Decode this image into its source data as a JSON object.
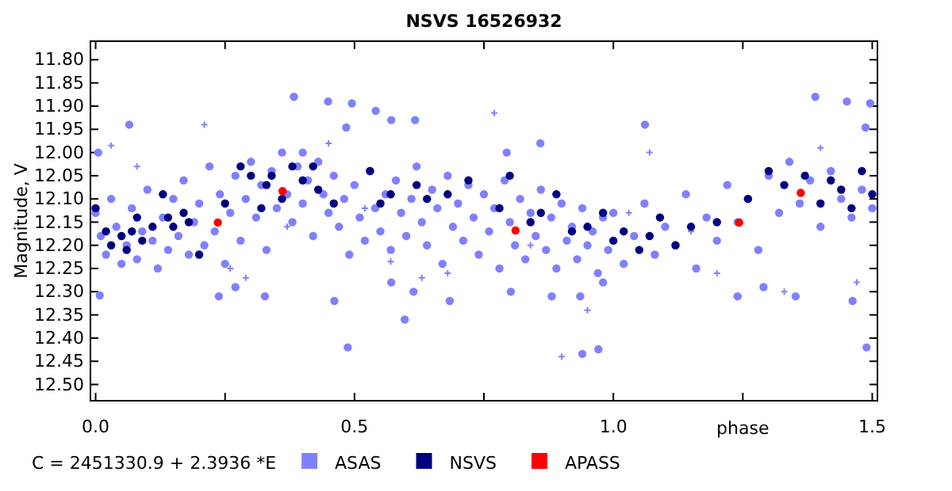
{
  "chart_data": {
    "type": "scatter",
    "title": "NSVS 16526932",
    "xlabel": "phase",
    "ylabel": "Magnitude, V",
    "annotations": [
      "C = 2451330.9 + 2.3936 *E"
    ],
    "xlim": [
      -0.01,
      1.51
    ],
    "ylim": [
      12.535,
      11.76
    ],
    "xticks": [
      {
        "value": 0,
        "label": "0.0"
      },
      {
        "value": 0.25,
        "label": null
      },
      {
        "value": 0.5,
        "label": "0.5"
      },
      {
        "value": 0.75,
        "label": null
      },
      {
        "value": 1,
        "label": "1.0"
      },
      {
        "value": 1.25,
        "label": null
      },
      {
        "value": 1.5,
        "label": "1.5"
      }
    ],
    "yticks": [
      {
        "value": 11.8,
        "label": "11.80"
      },
      {
        "value": 11.85,
        "label": "11.85"
      },
      {
        "value": 11.9,
        "label": "11.90"
      },
      {
        "value": 11.95,
        "label": "11.95"
      },
      {
        "value": 12,
        "label": "12.00"
      },
      {
        "value": 12.05,
        "label": "12.05"
      },
      {
        "value": 12.1,
        "label": "12.10"
      },
      {
        "value": 12.15,
        "label": "12.15"
      },
      {
        "value": 12.2,
        "label": "12.20"
      },
      {
        "value": 12.25,
        "label": "12.25"
      },
      {
        "value": 12.3,
        "label": "12.30"
      },
      {
        "value": 12.35,
        "label": "12.35"
      },
      {
        "value": 12.4,
        "label": "12.40"
      },
      {
        "value": 12.45,
        "label": "12.45"
      },
      {
        "value": 12.5,
        "label": "12.50"
      }
    ],
    "grid": false,
    "legend": "bottom",
    "marker": "circle",
    "series": [
      {
        "type": "scatter",
        "marker": "cross",
        "color": "#8080ff",
        "x": [
          0.03,
          0.08,
          0.21,
          0.26,
          0.29,
          0.45,
          0.52,
          0.63,
          0.68,
          0.77,
          0.84,
          0.9,
          0.95,
          1.07,
          1.15,
          1.2,
          1.33,
          1.4,
          1.47,
          0.37,
          0.57,
          1.03
        ],
        "values": [
          11.985,
          12.03,
          11.94,
          12.25,
          12.27,
          11.98,
          12.12,
          12.27,
          12.26,
          11.915,
          12.2,
          12.44,
          12.34,
          12,
          12.17,
          12.26,
          12.3,
          11.99,
          12.28,
          12.16,
          12.235,
          12.13
        ]
      },
      {
        "type": "scatter",
        "name": "ASAS",
        "color": "#8080ff",
        "x": [
          0,
          0.01,
          0.02,
          0.03,
          0.04,
          0.05,
          0.06,
          0.07,
          0.08,
          0.09,
          0.1,
          0.11,
          0.12,
          0.13,
          0.14,
          0.15,
          0.16,
          0.17,
          0.18,
          0.19,
          0.2,
          0.21,
          0.22,
          0.23,
          0.24,
          0.25,
          0.26,
          0.27,
          0.28,
          0.29,
          0.3,
          0.31,
          0.32,
          0.33,
          0.34,
          0.35,
          0.36,
          0.37,
          0.38,
          0.39,
          0.4,
          0.41,
          0.42,
          0.43,
          0.44,
          0.45,
          0.46,
          0.47,
          0.48,
          0.49,
          0.5,
          0.51,
          0.52,
          0.53,
          0.54,
          0.55,
          0.56,
          0.57,
          0.58,
          0.59,
          0.6,
          0.61,
          0.62,
          0.63,
          0.64,
          0.65,
          0.66,
          0.67,
          0.68,
          0.69,
          0.7,
          0.71,
          0.72,
          0.73,
          0.74,
          0.75,
          0.76,
          0.77,
          0.78,
          0.79,
          0.8,
          0.81,
          0.82,
          0.83,
          0.84,
          0.85,
          0.86,
          0.87,
          0.88,
          0.89,
          0.9,
          0.91,
          0.92,
          0.93,
          0.94,
          0.95,
          0.96,
          0.97,
          0.98,
          0.99,
          1,
          1.02,
          1.04,
          1.06,
          1.08,
          1.1,
          1.12,
          1.14,
          1.16,
          1.18,
          1.2,
          1.22,
          1.24,
          1.26,
          1.28,
          1.3,
          1.32,
          1.34,
          1.36,
          1.38,
          1.4,
          1.42,
          1.44,
          1.46,
          1.48,
          1.5,
          0.005,
          0.065,
          0.383,
          0.449,
          0.495,
          0.484,
          0.541,
          0.571,
          0.617,
          0.4,
          1.39,
          1.451,
          1.496,
          1.487,
          1.061,
          0.859,
          0.794,
          0.008,
          0.238,
          0.27,
          0.327,
          0.461,
          0.487,
          0.571,
          0.597,
          0.614,
          0.684,
          0.802,
          0.881,
          0.94,
          0.971,
          0.936,
          0.98,
          1.24,
          1.29,
          1.352,
          1.462,
          1.489
        ],
        "values": [
          12.13,
          12.18,
          12.22,
          12.1,
          12.16,
          12.24,
          12.2,
          12.12,
          12.23,
          12.17,
          12.08,
          12.19,
          12.25,
          12.14,
          12.21,
          12.1,
          12.18,
          12.06,
          12.22,
          12.15,
          12.11,
          12.2,
          12.03,
          12.17,
          12.09,
          12.24,
          12.13,
          12.05,
          12.19,
          12.1,
          12.02,
          12.14,
          12.07,
          12.21,
          12.04,
          12.12,
          12,
          12.09,
          12.15,
          12.03,
          12.11,
          12.06,
          12.18,
          12.02,
          12.09,
          12.13,
          12.05,
          12.16,
          12.1,
          12.22,
          12.07,
          12.14,
          12.19,
          12.04,
          12.12,
          12.17,
          12.09,
          12.21,
          12.06,
          12.13,
          12.18,
          12.1,
          12.03,
          12.15,
          12.2,
          12.08,
          12.12,
          12.24,
          12.05,
          12.16,
          12.11,
          12.19,
          12.07,
          12.14,
          12.22,
          12.09,
          12.17,
          12.12,
          12.25,
          12.06,
          12.15,
          12.2,
          12.1,
          12.23,
          12.13,
          12.18,
          12.08,
          12.21,
          12.14,
          12.25,
          12.11,
          12.19,
          12.16,
          12.23,
          12.12,
          12.2,
          12.17,
          12.26,
          12.14,
          12.21,
          12.13,
          12.24,
          12.18,
          12.11,
          12.22,
          12.16,
          12.2,
          12.09,
          12.25,
          12.14,
          12.19,
          12.07,
          12.15,
          12.1,
          12.21,
          12.05,
          12.13,
          12.02,
          12.11,
          12.06,
          12.16,
          12.04,
          12.1,
          12.14,
          12.08,
          12.12,
          12,
          11.94,
          11.88,
          11.89,
          11.894,
          11.946,
          11.91,
          11.93,
          11.93,
          12,
          11.88,
          11.89,
          11.894,
          11.946,
          11.94,
          11.98,
          12,
          12.308,
          12.31,
          12.29,
          12.31,
          12.32,
          12.42,
          12.28,
          12.36,
          12.3,
          12.32,
          12.3,
          12.31,
          12.434,
          12.424,
          12.31,
          12.28,
          12.31,
          12.29,
          12.31,
          12.32,
          12.42
        ]
      },
      {
        "type": "scatter",
        "name": "NSVS",
        "color": "#000080",
        "x": [
          0,
          0.02,
          0.03,
          0.05,
          0.06,
          0.07,
          0.08,
          0.09,
          0.11,
          0.13,
          0.14,
          0.15,
          0.17,
          0.18,
          0.2,
          0.25,
          0.28,
          0.3,
          0.32,
          0.33,
          0.34,
          0.36,
          0.38,
          0.4,
          0.42,
          0.43,
          0.46,
          0.53,
          0.55,
          0.57,
          0.62,
          0.64,
          0.68,
          0.72,
          0.78,
          0.8,
          0.84,
          0.86,
          0.89,
          0.92,
          0.95,
          0.98,
          1,
          1.02,
          1.05,
          1.07,
          1.09,
          1.12,
          1.15,
          1.2,
          1.26,
          1.3,
          1.33,
          1.37,
          1.4,
          1.42,
          1.44,
          1.46,
          1.48,
          1.5
        ],
        "values": [
          12.12,
          12.17,
          12.2,
          12.18,
          12.21,
          12.17,
          12.14,
          12.19,
          12.16,
          12.09,
          12.14,
          12.16,
          12.13,
          12.15,
          12.22,
          12.11,
          12.03,
          12.05,
          12.12,
          12.07,
          12.05,
          12.1,
          12.03,
          12.06,
          12.03,
          12.08,
          12.11,
          12.04,
          12.11,
          12.09,
          12.07,
          12.1,
          12.09,
          12.06,
          12.12,
          12.05,
          12.15,
          12.13,
          12.09,
          12.17,
          12.16,
          12.13,
          12.19,
          12.17,
          12.21,
          12.18,
          12.14,
          12.2,
          12.16,
          12.15,
          12.1,
          12.04,
          12.07,
          12.05,
          12.11,
          12.06,
          12.08,
          12.12,
          12.04,
          12.09
        ]
      },
      {
        "type": "scatter",
        "name": "APASS",
        "color": "#ff0000",
        "x": [
          0.236,
          0.361,
          0.811,
          1.243,
          1.362
        ],
        "values": [
          12.151,
          12.083,
          12.168,
          12.151,
          12.087
        ]
      }
    ]
  }
}
